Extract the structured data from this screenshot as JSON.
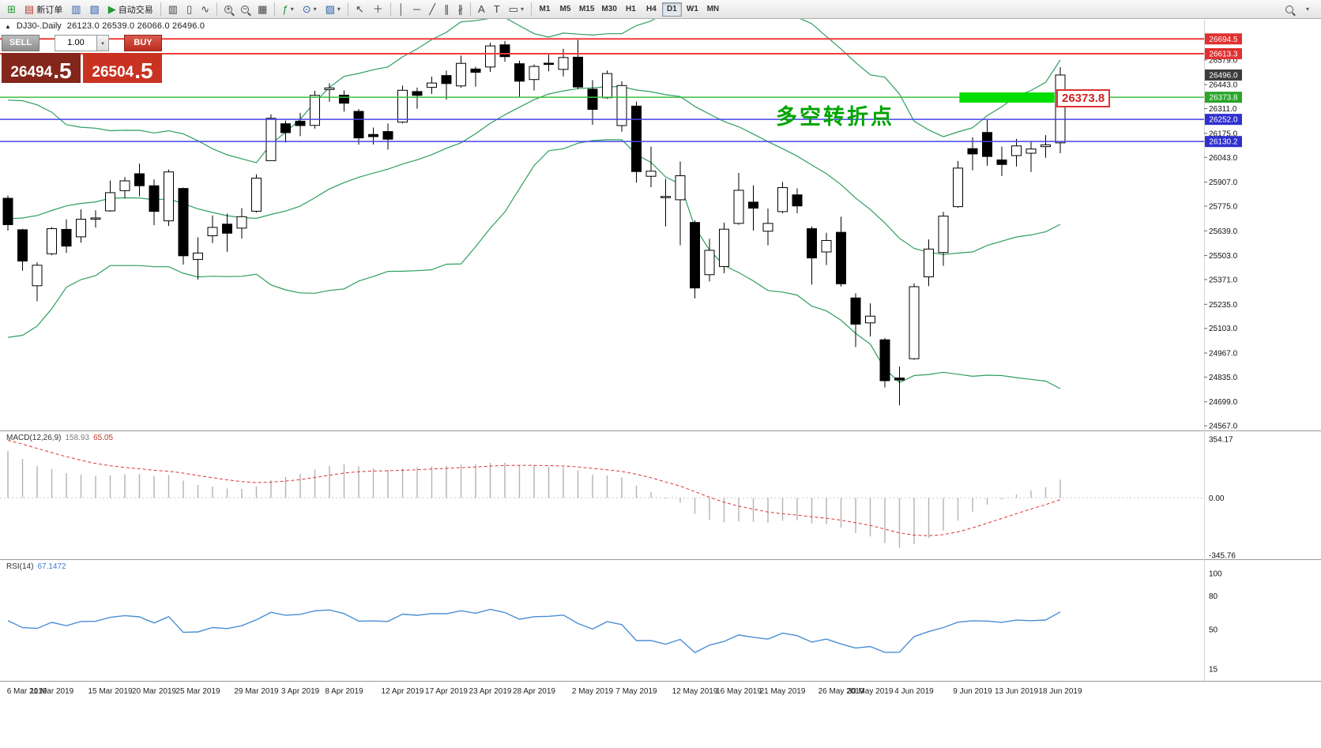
{
  "toolbar": {
    "new_order": "新订单",
    "auto_trading": "自动交易",
    "timeframes": [
      "M1",
      "M5",
      "M15",
      "M30",
      "H1",
      "H4",
      "D1",
      "W1",
      "MN"
    ],
    "active_timeframe": "D1"
  },
  "icons": {
    "new_chart": "⊞",
    "new_order_doc": "▤",
    "chart_window": "▥",
    "profiles": "▧",
    "auto_play": "▶",
    "bar_chart": "▥",
    "candle_chart": "▯",
    "line_chart": "∿",
    "zoom_in": "+",
    "zoom_out": "−",
    "grid": "▦",
    "indicators": "ƒ",
    "periods": "⊙",
    "templates": "▨",
    "cursor": "↖",
    "crosshair": "＋",
    "vline": "│",
    "hline": "─",
    "trendline": "╱",
    "channel": "∥",
    "fibonacci": "∦",
    "text": "A",
    "label": "T",
    "shapes": "▭",
    "caret": "▾"
  },
  "chart_header": {
    "toggle": "▲",
    "symbol": "DJ30-.Daily",
    "ohlc": "26123.0 26539.0 26066.0 26496.0"
  },
  "trade_panel": {
    "sell": "SELL",
    "buy": "BUY",
    "volume": "1.00",
    "caret": "▾",
    "sell_main": "26494",
    "sell_frac": ".5",
    "buy_main": "26504",
    "buy_frac": ".5"
  },
  "annotation": {
    "text": "多空转折点",
    "color": "#00a400"
  },
  "callout": {
    "text": "26373.8"
  },
  "panes": {
    "macd": {
      "name": "MACD(12,26,9)",
      "main": "158.93",
      "signal": "65.05",
      "ticks": [
        {
          "text": "354.17",
          "v": 354.17
        },
        {
          "text": "0.00",
          "v": 0
        },
        {
          "text": "-345.76",
          "v": -345.76
        }
      ]
    },
    "rsi": {
      "name": "RSI(14)",
      "value": "67.1472",
      "ticks": [
        {
          "text": "100",
          "v": 100
        },
        {
          "text": "80",
          "v": 80
        },
        {
          "text": "50",
          "v": 50
        },
        {
          "text": "15",
          "v": 15
        }
      ]
    }
  },
  "price_scale": {
    "ticks": [
      {
        "text": "26579.0",
        "v": 26579
      },
      {
        "text": "26443.0",
        "v": 26443
      },
      {
        "text": "26311.0",
        "v": 26311
      },
      {
        "text": "26175.0",
        "v": 26175
      },
      {
        "text": "26043.0",
        "v": 26043
      },
      {
        "text": "25907.0",
        "v": 25907
      },
      {
        "text": "25775.0",
        "v": 25775
      },
      {
        "text": "25639.0",
        "v": 25639
      },
      {
        "text": "25503.0",
        "v": 25503
      },
      {
        "text": "25371.0",
        "v": 25371
      },
      {
        "text": "25235.0",
        "v": 25235
      },
      {
        "text": "25103.0",
        "v": 25103
      },
      {
        "text": "24967.0",
        "v": 24967
      },
      {
        "text": "24835.0",
        "v": 24835
      },
      {
        "text": "24699.0",
        "v": 24699
      },
      {
        "text": "24567.0",
        "v": 24567
      }
    ],
    "badges": [
      {
        "text": "26694.5",
        "v": 26694.5,
        "bg": "#e03030"
      },
      {
        "text": "26613.3",
        "v": 26613.3,
        "bg": "#e03030"
      },
      {
        "text": "26496.0",
        "v": 26496.0,
        "bg": "#3c3c3c"
      },
      {
        "text": "26373.8",
        "v": 26373.8,
        "bg": "#2aa52a"
      },
      {
        "text": "26252.0",
        "v": 26252.0,
        "bg": "#3030d0"
      },
      {
        "text": "26130.2",
        "v": 26130.2,
        "bg": "#3030d0"
      }
    ]
  },
  "chart_data": {
    "type": "candlestick",
    "title": "DJ30-.Daily",
    "last_candle_ohlc": [
      26123.0,
      26539.0,
      26066.0,
      26496.0
    ],
    "y_range": {
      "max": 26713,
      "min": 24550
    },
    "x_labels": [
      {
        "text": "6 Mar 2019",
        "i": 0
      },
      {
        "text": "11 Mar 2019",
        "i": 3
      },
      {
        "text": "15 Mar 2019",
        "i": 7
      },
      {
        "text": "20 Mar 2019",
        "i": 10
      },
      {
        "text": "25 Mar 2019",
        "i": 13
      },
      {
        "text": "29 Mar 2019",
        "i": 17
      },
      {
        "text": "3 Apr 2019",
        "i": 20
      },
      {
        "text": "8 Apr 2019",
        "i": 23
      },
      {
        "text": "12 Apr 2019",
        "i": 27
      },
      {
        "text": "17 Apr 2019",
        "i": 30
      },
      {
        "text": "23 Apr 2019",
        "i": 33
      },
      {
        "text": "28 Apr 2019",
        "i": 36
      },
      {
        "text": "2 May 2019",
        "i": 40
      },
      {
        "text": "7 May 2019",
        "i": 43
      },
      {
        "text": "12 May 2019",
        "i": 47
      },
      {
        "text": "16 May 2019",
        "i": 50
      },
      {
        "text": "21 May 2019",
        "i": 53
      },
      {
        "text": "26 May 2019",
        "i": 57
      },
      {
        "text": "30 May 2019",
        "i": 59
      },
      {
        "text": "4 Jun 2019",
        "i": 62
      },
      {
        "text": "9 Jun 2019",
        "i": 66
      },
      {
        "text": "13 Jun 2019",
        "i": 69
      },
      {
        "text": "18 Jun 2019",
        "i": 72
      }
    ],
    "pre_closes": [
      23910,
      24065,
      24370,
      24706,
      24527,
      24404,
      24575,
      24576,
      24737,
      24528,
      24580,
      24999,
      25014,
      25063,
      25239,
      25411,
      25390,
      25170,
      25106,
      25053,
      25425,
      25543,
      25439,
      25883,
      25891,
      25954,
      25850,
      26032,
      26092,
      26058,
      25985,
      25916,
      26026,
      25819,
      25806
    ],
    "ohlc": [
      [
        25818,
        25833,
        25640,
        25673
      ],
      [
        25645,
        25650,
        25420,
        25473
      ],
      [
        25337,
        25466,
        25252,
        25450
      ],
      [
        25513,
        25660,
        25505,
        25651
      ],
      [
        25647,
        25702,
        25518,
        25555
      ],
      [
        25606,
        25757,
        25574,
        25703
      ],
      [
        25709,
        25752,
        25657,
        25710
      ],
      [
        25749,
        25916,
        25744,
        25849
      ],
      [
        25860,
        25935,
        25819,
        25914
      ],
      [
        25953,
        26009,
        25829,
        25887
      ],
      [
        25887,
        25922,
        25670,
        25746
      ],
      [
        25694,
        25976,
        25666,
        25963
      ],
      [
        25872,
        25877,
        25454,
        25502
      ],
      [
        25482,
        25603,
        25372,
        25517
      ],
      [
        25612,
        25724,
        25572,
        25658
      ],
      [
        25676,
        25734,
        25524,
        25626
      ],
      [
        25654,
        25764,
        25596,
        25717
      ],
      [
        25747,
        25950,
        25740,
        25929
      ],
      [
        26025,
        26280,
        26025,
        26258
      ],
      [
        26228,
        26245,
        26125,
        26179
      ],
      [
        26242,
        26288,
        26160,
        26218
      ],
      [
        26219,
        26409,
        26201,
        26384
      ],
      [
        26416,
        26451,
        26349,
        26425
      ],
      [
        26385,
        26411,
        26295,
        26341
      ],
      [
        26296,
        26309,
        26113,
        26150
      ],
      [
        26169,
        26207,
        26114,
        26157
      ],
      [
        26185,
        26229,
        26086,
        26143
      ],
      [
        26237,
        26438,
        26230,
        26412
      ],
      [
        26405,
        26427,
        26310,
        26384
      ],
      [
        26428,
        26487,
        26392,
        26452
      ],
      [
        26493,
        26520,
        26361,
        26449
      ],
      [
        26436,
        26602,
        26426,
        26560
      ],
      [
        26529,
        26542,
        26432,
        26511
      ],
      [
        26540,
        26674,
        26513,
        26656
      ],
      [
        26662,
        26683,
        26569,
        26597
      ],
      [
        26558,
        26575,
        26377,
        26462
      ],
      [
        26471,
        26554,
        26411,
        26543
      ],
      [
        26561,
        26608,
        26516,
        26554
      ],
      [
        26527,
        26640,
        26488,
        26592
      ],
      [
        26594,
        26689,
        26418,
        26430
      ],
      [
        26418,
        26468,
        26222,
        26307
      ],
      [
        26371,
        26521,
        26365,
        26504
      ],
      [
        26218,
        26461,
        26184,
        26438
      ],
      [
        26325,
        26349,
        25904,
        25965
      ],
      [
        25939,
        26102,
        25879,
        25967
      ],
      [
        25822,
        25924,
        25664,
        25828
      ],
      [
        25810,
        26020,
        25560,
        25942
      ],
      [
        25685,
        25697,
        25268,
        25325
      ],
      [
        25398,
        25595,
        25361,
        25532
      ],
      [
        25443,
        25684,
        25406,
        25648
      ],
      [
        25680,
        25958,
        25672,
        25862
      ],
      [
        25797,
        25890,
        25640,
        25764
      ],
      [
        25637,
        25762,
        25560,
        25680
      ],
      [
        25745,
        25908,
        25735,
        25877
      ],
      [
        25837,
        25873,
        25736,
        25776
      ],
      [
        25651,
        25663,
        25344,
        25490
      ],
      [
        25523,
        25628,
        25451,
        25586
      ],
      [
        25631,
        25717,
        25333,
        25348
      ],
      [
        25270,
        25296,
        25000,
        25126
      ],
      [
        25133,
        25240,
        25058,
        25170
      ],
      [
        25040,
        25050,
        24778,
        24815
      ],
      [
        24830,
        24893,
        24680,
        24819
      ],
      [
        24936,
        25350,
        24930,
        25332
      ],
      [
        25386,
        25592,
        25335,
        25539
      ],
      [
        25520,
        25744,
        25447,
        25720
      ],
      [
        25772,
        26023,
        25766,
        25984
      ],
      [
        26091,
        26154,
        25972,
        26062
      ],
      [
        26180,
        26248,
        25997,
        26048
      ],
      [
        26029,
        26103,
        25940,
        26004
      ],
      [
        26053,
        26145,
        25993,
        26106
      ],
      [
        26066,
        26129,
        25963,
        26089
      ],
      [
        26102,
        26165,
        26041,
        26112
      ],
      [
        26123,
        26539,
        26066,
        26496
      ]
    ],
    "hlines": [
      {
        "v": 26694.5,
        "color": "#f23b3b",
        "w": 2
      },
      {
        "v": 26613.3,
        "color": "#f23b3b",
        "w": 2
      },
      {
        "v": 26373.8,
        "color": "#3fbf3f",
        "w": 1.5
      },
      {
        "v": 26252.0,
        "color": "#4545e8",
        "w": 1.5
      },
      {
        "v": 26130.2,
        "color": "#4545e8",
        "w": 1.5
      }
    ],
    "highlight_rect": {
      "i1": 65.1,
      "i2": 71.6,
      "top": 26400,
      "bottom": 26344,
      "fill": "#00dd00"
    },
    "indicators": {
      "bollinger": {
        "period": 20,
        "dev": 2,
        "color": "#2f9e5d"
      },
      "macd": {
        "fast": 12,
        "slow": 26,
        "signal": 9,
        "hist_color": "#b2b2b2",
        "signal_color": "#dd3333"
      },
      "rsi": {
        "period": 14,
        "color": "#4a8fd4"
      }
    }
  }
}
